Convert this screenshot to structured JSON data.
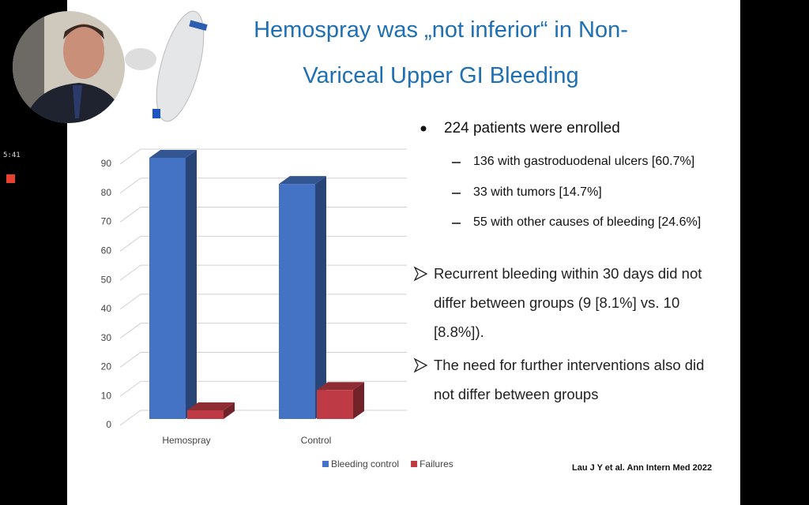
{
  "overlay": {
    "timer": "5:41"
  },
  "slide": {
    "title_lines": [
      "Hemospray was „not inferior“ in Non-",
      "Variceal Upper GI Bleeding"
    ],
    "bullet": {
      "text": "224 patients were enrolled",
      "sub": [
        "136 with gastroduodenal ulcers [60.7%]",
        "33 with tumors [14.7%]",
        "55 with other causes of bleeding [24.6%]"
      ]
    },
    "arrows": [
      "Recurrent bleeding within 30 days did not differ between groups (9 [8.1%] vs. 10 [8.8%]).",
      "The need for further interventions also did not differ between groups"
    ],
    "citation": "Lau J Y et al. Ann Intern Med 2022"
  },
  "chart_data": {
    "type": "bar3d",
    "categories": [
      "Hemospray",
      "Control"
    ],
    "series": [
      {
        "name": "Bleeding control",
        "color": "#4472c4",
        "values": [
          90,
          81
        ]
      },
      {
        "name": "Failures",
        "color": "#be3a44",
        "values": [
          3,
          10
        ]
      }
    ],
    "ylim": [
      0,
      90
    ],
    "yticks": [
      0,
      10,
      20,
      30,
      40,
      50,
      60,
      70,
      80,
      90
    ],
    "grid": true,
    "legend": "bottom"
  }
}
